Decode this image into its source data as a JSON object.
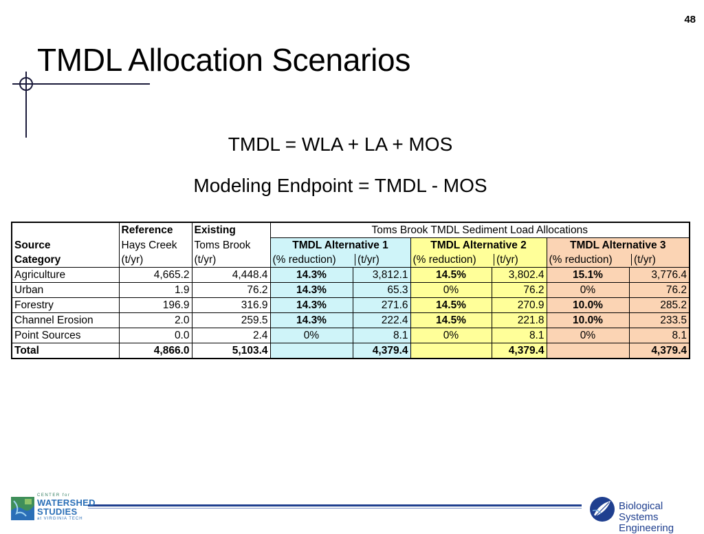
{
  "slide_number": "48",
  "title": "TMDL Allocation Scenarios",
  "formulas": [
    "TMDL = WLA + LA + MOS",
    "Modeling Endpoint = TMDL - MOS"
  ],
  "table": {
    "title": "Toms Brook TMDL Sediment Load Allocations",
    "headers": {
      "source_line1": "Source",
      "source_line2": "Category",
      "ref_line1": "Reference",
      "ref_line2": "Hays Creek",
      "ref_unit": "(t/yr)",
      "exist_line1": "Existing",
      "exist_line2": "Toms Brook",
      "exist_unit": "(t/yr)",
      "alt1": "TMDL Alternative 1",
      "alt2": "TMDL Alternative 2",
      "alt3": "TMDL Alternative 3",
      "pct_unit": "(% reduction)",
      "load_unit": "(t/yr)"
    },
    "rows": [
      {
        "category": "Agriculture",
        "reference": "4,665.2",
        "existing": "4,448.4",
        "a1_pct": "14.3%",
        "a1_load": "3,812.1",
        "a2_pct": "14.5%",
        "a2_load": "3,802.4",
        "a3_pct": "15.1%",
        "a3_load": "3,776.4"
      },
      {
        "category": "Urban",
        "reference": "1.9",
        "existing": "76.2",
        "a1_pct": "14.3%",
        "a1_load": "65.3",
        "a2_pct": "0%",
        "a2_load": "76.2",
        "a3_pct": "0%",
        "a3_load": "76.2"
      },
      {
        "category": "Forestry",
        "reference": "196.9",
        "existing": "316.9",
        "a1_pct": "14.3%",
        "a1_load": "271.6",
        "a2_pct": "14.5%",
        "a2_load": "270.9",
        "a3_pct": "10.0%",
        "a3_load": "285.2"
      },
      {
        "category": "Channel Erosion",
        "reference": "2.0",
        "existing": "259.5",
        "a1_pct": "14.3%",
        "a1_load": "222.4",
        "a2_pct": "14.5%",
        "a2_load": "221.8",
        "a3_pct": "10.0%",
        "a3_load": "233.5"
      },
      {
        "category": "Point Sources",
        "reference": "0.0",
        "existing": "2.4",
        "a1_pct": "0%",
        "a1_load": "8.1",
        "a2_pct": "0%",
        "a2_load": "8.1",
        "a3_pct": "0%",
        "a3_load": "8.1"
      }
    ],
    "total": {
      "category": "Total",
      "reference": "4,866.0",
      "existing": "5,103.4",
      "a1_load": "4,379.4",
      "a2_load": "4,379.4",
      "a3_load": "4,379.4"
    }
  },
  "logos": {
    "left": {
      "line1": "CENTER for",
      "line2": "WATERSHED",
      "line3": "STUDIES",
      "line4": "at VIRGINIA TECH"
    },
    "right": {
      "line1": "Biological Systems",
      "line2": "Engineering"
    }
  },
  "colors": {
    "alt1": "#cff4f9",
    "alt2": "#ffff99",
    "alt3": "#fbd4b4",
    "footer_line": "#1f3f8f"
  }
}
